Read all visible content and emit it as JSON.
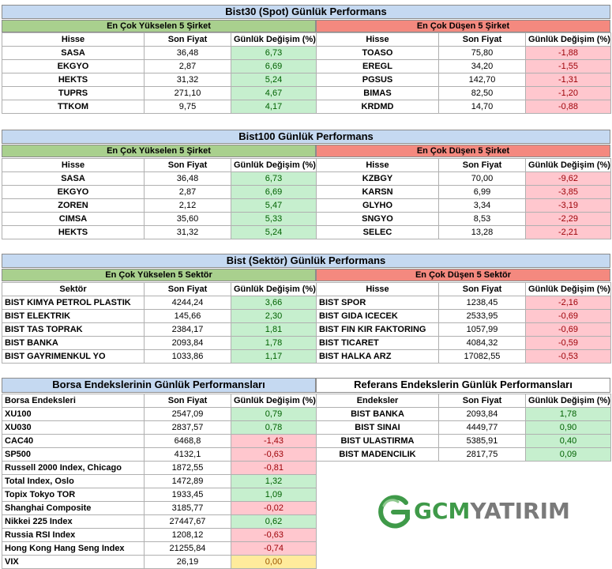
{
  "colors": {
    "section_blue": "#c5d9f1",
    "header_green": "#a9d08e",
    "header_red": "#f4897f",
    "positive_fill": "#c6efce",
    "negative_fill": "#ffc7ce",
    "neutral_fill": "#ffeb9c"
  },
  "bist30": {
    "title": "Bist30 (Spot) Günlük Performans",
    "up_title": "En Çok Yükselen 5 Şirket",
    "down_title": "En Çok Düşen 5 Şirket",
    "col_name": "Hisse",
    "col_price": "Son Fiyat",
    "col_change": "Günlük Değişim (%)",
    "up": [
      {
        "name": "SASA",
        "price": "36,48",
        "change": "6,73"
      },
      {
        "name": "EKGYO",
        "price": "2,87",
        "change": "6,69"
      },
      {
        "name": "HEKTS",
        "price": "31,32",
        "change": "5,24"
      },
      {
        "name": "TUPRS",
        "price": "271,10",
        "change": "4,67"
      },
      {
        "name": "TTKOM",
        "price": "9,75",
        "change": "4,17"
      }
    ],
    "down": [
      {
        "name": "TOASO",
        "price": "75,80",
        "change": "-1,88"
      },
      {
        "name": "EREGL",
        "price": "34,20",
        "change": "-1,55"
      },
      {
        "name": "PGSUS",
        "price": "142,70",
        "change": "-1,31"
      },
      {
        "name": "BIMAS",
        "price": "82,50",
        "change": "-1,20"
      },
      {
        "name": "KRDMD",
        "price": "14,70",
        "change": "-0,88"
      }
    ]
  },
  "bist100": {
    "title": "Bist100 Günlük Performans",
    "up_title": "En Çok Yükselen 5 Şirket",
    "down_title": "En Çok Düşen 5 Şirket",
    "col_name": "Hisse",
    "col_price": "Son Fiyat",
    "col_change": "Günlük Değişim (%)",
    "up": [
      {
        "name": "SASA",
        "price": "36,48",
        "change": "6,73"
      },
      {
        "name": "EKGYO",
        "price": "2,87",
        "change": "6,69"
      },
      {
        "name": "ZOREN",
        "price": "2,12",
        "change": "5,47"
      },
      {
        "name": "CIMSA",
        "price": "35,60",
        "change": "5,33"
      },
      {
        "name": "HEKTS",
        "price": "31,32",
        "change": "5,24"
      }
    ],
    "down": [
      {
        "name": "KZBGY",
        "price": "70,00",
        "change": "-9,62"
      },
      {
        "name": "KARSN",
        "price": "6,99",
        "change": "-3,85"
      },
      {
        "name": "GLYHO",
        "price": "3,34",
        "change": "-3,19"
      },
      {
        "name": "SNGYO",
        "price": "8,53",
        "change": "-2,29"
      },
      {
        "name": "SELEC",
        "price": "13,28",
        "change": "-2,21"
      }
    ]
  },
  "sector": {
    "title": "Bist (Sektör) Günlük Performans",
    "up_title": "En Çok Yükselen 5 Sektör",
    "down_title": "En Çok Düşen 5 Sektör",
    "col_name_up": "Sektör",
    "col_name_down": "Hisse",
    "col_price": "Son Fiyat",
    "col_change": "Günlük Değişim (%)",
    "up": [
      {
        "name": "BIST KIMYA PETROL PLASTIK",
        "price": "4244,24",
        "change": "3,66"
      },
      {
        "name": "BIST ELEKTRIK",
        "price": "145,66",
        "change": "2,30"
      },
      {
        "name": "BIST TAS TOPRAK",
        "price": "2384,17",
        "change": "1,81"
      },
      {
        "name": "BIST BANKA",
        "price": "2093,84",
        "change": "1,78"
      },
      {
        "name": "BIST GAYRIMENKUL YO",
        "price": "1033,86",
        "change": "1,17"
      }
    ],
    "down": [
      {
        "name": "BIST SPOR",
        "price": "1238,45",
        "change": "-2,16"
      },
      {
        "name": "BIST GIDA ICECEK",
        "price": "2533,95",
        "change": "-0,69"
      },
      {
        "name": "BIST FIN KIR FAKTORING",
        "price": "1057,99",
        "change": "-0,69"
      },
      {
        "name": "BIST TICARET",
        "price": "4084,32",
        "change": "-0,59"
      },
      {
        "name": "BIST HALKA ARZ",
        "price": "17082,55",
        "change": "-0,53"
      }
    ]
  },
  "indices": {
    "title": "Borsa Endekslerinin Günlük Performansları",
    "col_name": "Borsa Endeksleri",
    "col_price": "Son Fiyat",
    "col_change": "Günlük Değişim (%)",
    "rows": [
      {
        "name": "XU100",
        "price": "2547,09",
        "change": "0,79",
        "sign": "pos"
      },
      {
        "name": "XU030",
        "price": "2837,57",
        "change": "0,78",
        "sign": "pos"
      },
      {
        "name": "CAC40",
        "price": "6468,8",
        "change": "-1,43",
        "sign": "neg"
      },
      {
        "name": "SP500",
        "price": "4132,1",
        "change": "-0,63",
        "sign": "neg"
      },
      {
        "name": "Russell 2000 Index, Chicago",
        "price": "1872,55",
        "change": "-0,81",
        "sign": "neg"
      },
      {
        "name": "Total Index, Oslo",
        "price": "1472,89",
        "change": "1,32",
        "sign": "pos"
      },
      {
        "name": "Topix Tokyo TOR",
        "price": "1933,45",
        "change": "1,09",
        "sign": "pos"
      },
      {
        "name": "Shanghai Composite",
        "price": "3185,77",
        "change": "-0,02",
        "sign": "neg"
      },
      {
        "name": "Nikkei 225 Index",
        "price": "27447,67",
        "change": "0,62",
        "sign": "pos"
      },
      {
        "name": "Russia RSI Index",
        "price": "1208,12",
        "change": "-0,63",
        "sign": "neg"
      },
      {
        "name": "Hong Kong Hang Seng Index",
        "price": "21255,84",
        "change": "-0,74",
        "sign": "neg"
      },
      {
        "name": "VIX",
        "price": "26,19",
        "change": "0,00",
        "sign": "zero"
      }
    ]
  },
  "reference": {
    "title": "Referans Endekslerin  Günlük Performansları",
    "col_name": "Endeksler",
    "col_price": "Son Fiyat",
    "col_change": "Günlük Değişim (%)",
    "rows": [
      {
        "name": "BIST BANKA",
        "price": "2093,84",
        "change": "1,78"
      },
      {
        "name": "BIST SINAI",
        "price": "4449,77",
        "change": "0,90"
      },
      {
        "name": "BIST ULASTIRMA",
        "price": "5385,91",
        "change": "0,40"
      },
      {
        "name": "BIST MADENCILIK",
        "price": "2817,75",
        "change": "0,09"
      }
    ]
  },
  "logo": {
    "part1": "GCM",
    "part2": "YATIRIM",
    "icon": "gcm-swoosh-icon"
  }
}
